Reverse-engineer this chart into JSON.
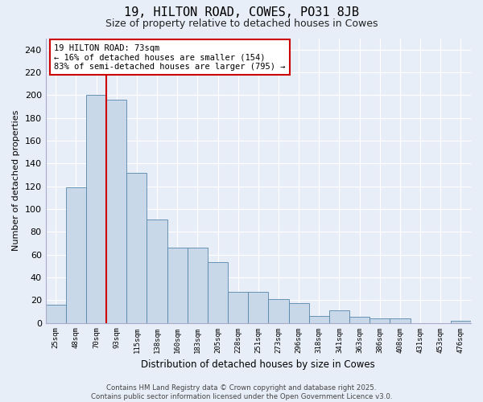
{
  "title": "19, HILTON ROAD, COWES, PO31 8JB",
  "subtitle": "Size of property relative to detached houses in Cowes",
  "xlabel": "Distribution of detached houses by size in Cowes",
  "ylabel": "Number of detached properties",
  "categories": [
    "25sqm",
    "48sqm",
    "70sqm",
    "93sqm",
    "115sqm",
    "138sqm",
    "160sqm",
    "183sqm",
    "205sqm",
    "228sqm",
    "251sqm",
    "273sqm",
    "296sqm",
    "318sqm",
    "341sqm",
    "363sqm",
    "386sqm",
    "408sqm",
    "431sqm",
    "453sqm",
    "476sqm"
  ],
  "bar_heights": [
    16,
    119,
    200,
    196,
    132,
    91,
    66,
    66,
    53,
    27,
    27,
    21,
    17,
    6,
    11,
    5,
    4,
    4,
    0,
    0,
    2
  ],
  "bar_color": "#c8d8e8",
  "bar_edge_color": "#5585aa",
  "vline_position": 2.5,
  "vline_color": "#cc0000",
  "annotation_text": "19 HILTON ROAD: 73sqm\n← 16% of detached houses are smaller (154)\n83% of semi-detached houses are larger (795) →",
  "ylim": [
    0,
    250
  ],
  "yticks": [
    0,
    20,
    40,
    60,
    80,
    100,
    120,
    140,
    160,
    180,
    200,
    220,
    240
  ],
  "background_color": "#e8eef8",
  "grid_color": "#ffffff",
  "footer": "Contains HM Land Registry data © Crown copyright and database right 2025.\nContains public sector information licensed under the Open Government Licence v3.0."
}
